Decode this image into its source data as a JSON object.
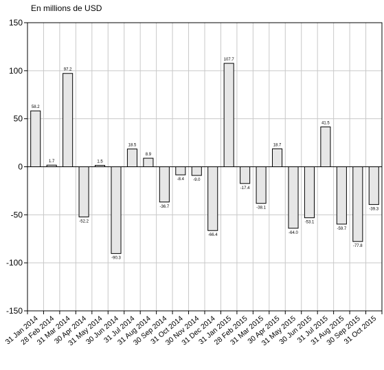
{
  "chart_data": {
    "type": "bar",
    "ylabel": "En millions de USD",
    "ylim": [
      -150,
      150
    ],
    "yticks": [
      150,
      100,
      50,
      0,
      -50,
      -100,
      -150
    ],
    "grid": true,
    "legend": "none",
    "bar_color": "#e6e6e6",
    "bar_stroke": "#000000",
    "grid_color": "#c8c8c8",
    "categories": [
      "31 Jan 2014",
      "28 Feb 2014",
      "31 Mar 2014",
      "30 Apr 2014",
      "31 May 2014",
      "30 Jun 2014",
      "31 Jul 2014",
      "31 Aug 2014",
      "30 Sep 2014",
      "31 Oct 2014",
      "30 Nov 2014",
      "31 Dec 2014",
      "31 Jan 2015",
      "28 Feb 2015",
      "31 Mar 2015",
      "30 Apr 2015",
      "31 May 2015",
      "30 Jun 2015",
      "31 Jul 2015",
      "31 Aug 2015",
      "30 Sep 2015",
      "31 Oct 2015"
    ],
    "values": [
      58.2,
      1.7,
      97.2,
      -52.2,
      1.5,
      -90.3,
      18.5,
      8.9,
      -36.7,
      -8.4,
      -9.0,
      -66.4,
      107.7,
      -17.4,
      -38.1,
      18.7,
      -64.0,
      -53.1,
      41.5,
      -59.7,
      -77.8,
      -39.3
    ],
    "data_labels": [
      "58.2",
      "1.7",
      "97.2",
      "-52.2",
      "1.5",
      "-90.3",
      "18.5",
      "8.9",
      "-36.7",
      "-8.4",
      "-9.0",
      "-66.4",
      "107.7",
      "-17.4",
      "-38.1",
      "18.7",
      "-64.0",
      "-53.1",
      "41.5",
      "-59.7",
      "-77.8",
      "-39.3"
    ]
  }
}
